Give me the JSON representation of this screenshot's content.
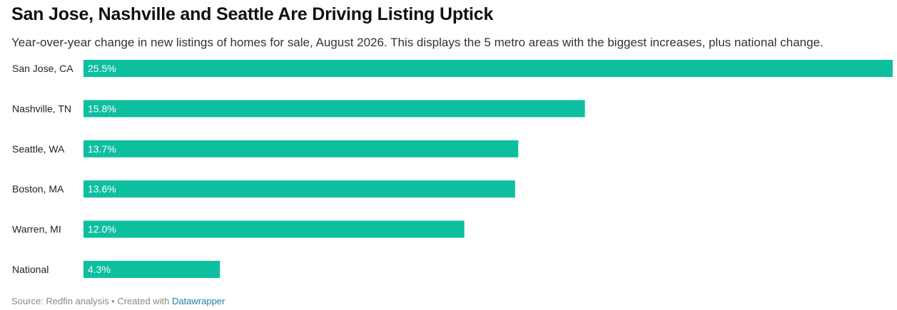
{
  "header": {
    "title": "San Jose, Nashville and Seattle Are Driving Listing Uptick",
    "subtitle": "Year-over-year change in new listings of homes for sale, August 2026. This displays the 5 metro areas with the biggest increases, plus national change."
  },
  "footer": {
    "source_text": "Source: Redfin analysis • Created with ",
    "link_text": "Datawrapper"
  },
  "colors": {
    "bar": "#0dbf9f"
  },
  "chart_data": {
    "type": "bar",
    "orientation": "horizontal",
    "categories": [
      "San Jose, CA",
      "Nashville, TN",
      "Seattle, WA",
      "Boston, MA",
      "Warren, MI",
      "National"
    ],
    "values": [
      25.5,
      15.8,
      13.7,
      13.6,
      12.0,
      4.3
    ],
    "value_labels": [
      "25.5%",
      "15.8%",
      "13.7%",
      "13.6%",
      "12.0%",
      "4.3%"
    ],
    "unit": "%",
    "xlim": [
      0,
      25.5
    ],
    "grid": false,
    "legend": "none"
  }
}
